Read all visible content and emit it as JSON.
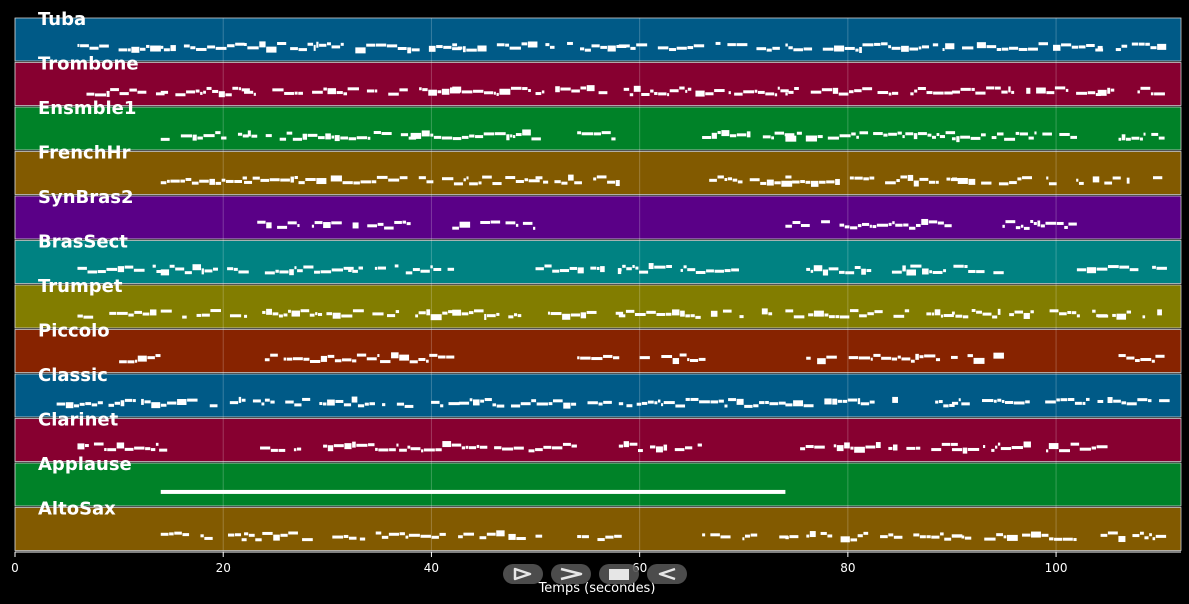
{
  "chart_data": {
    "type": "piano-roll",
    "xlabel": "Temps (secondes)",
    "xlim": [
      0,
      112
    ],
    "xticks": [
      0,
      20,
      40,
      60,
      80,
      100
    ],
    "grid": true,
    "tracks": [
      {
        "name": "Tuba",
        "color": "#005a87",
        "phrases": [
          [
            6,
            14
          ],
          [
            14,
            22
          ],
          [
            22,
            42
          ],
          [
            42,
            58
          ],
          [
            58,
            74
          ],
          [
            74,
            90
          ],
          [
            90,
            104
          ],
          [
            104,
            110
          ]
        ]
      },
      {
        "name": "Trombone",
        "color": "#870030",
        "phrases": [
          [
            6,
            14
          ],
          [
            14,
            22
          ],
          [
            22,
            42
          ],
          [
            42,
            50
          ],
          [
            50,
            58
          ],
          [
            58,
            74
          ],
          [
            74,
            90
          ],
          [
            90,
            104
          ],
          [
            104,
            110
          ]
        ]
      },
      {
        "name": "Ensmble1",
        "color": "#008228",
        "phrases": [
          [
            14,
            22
          ],
          [
            22,
            38
          ],
          [
            38,
            50
          ],
          [
            54,
            58
          ],
          [
            66,
            74
          ],
          [
            74,
            90
          ],
          [
            90,
            102
          ],
          [
            106,
            110
          ]
        ]
      },
      {
        "name": "FrenchHr",
        "color": "#825a00",
        "phrases": [
          [
            14,
            22
          ],
          [
            22,
            40
          ],
          [
            40,
            50
          ],
          [
            50,
            58
          ],
          [
            66,
            74
          ],
          [
            74,
            90
          ],
          [
            90,
            104
          ],
          [
            104,
            110
          ]
        ]
      },
      {
        "name": "SynBras2",
        "color": "#5a0087",
        "phrases": [
          [
            22,
            38
          ],
          [
            42,
            50
          ],
          [
            74,
            90
          ],
          [
            94,
            102
          ]
        ]
      },
      {
        "name": "BrasSect",
        "color": "#008282",
        "phrases": [
          [
            6,
            14
          ],
          [
            14,
            22
          ],
          [
            24,
            32
          ],
          [
            32,
            42
          ],
          [
            50,
            58
          ],
          [
            58,
            70
          ],
          [
            76,
            86
          ],
          [
            86,
            94
          ],
          [
            102,
            110
          ]
        ]
      },
      {
        "name": "Trumpet",
        "color": "#827d00",
        "phrases": [
          [
            6,
            14
          ],
          [
            14,
            22
          ],
          [
            22,
            42
          ],
          [
            42,
            58
          ],
          [
            58,
            74
          ],
          [
            74,
            90
          ],
          [
            90,
            104
          ],
          [
            104,
            110
          ]
        ]
      },
      {
        "name": "Piccolo",
        "color": "#872300",
        "phrases": [
          [
            10,
            14
          ],
          [
            24,
            42
          ],
          [
            54,
            58
          ],
          [
            60,
            66
          ],
          [
            76,
            94
          ],
          [
            106,
            110
          ]
        ]
      },
      {
        "name": "Classic",
        "color": "#005a87",
        "phrases": [
          [
            4,
            22
          ],
          [
            22,
            42
          ],
          [
            42,
            58
          ],
          [
            58,
            74
          ],
          [
            74,
            90
          ],
          [
            90,
            104
          ],
          [
            104,
            110
          ]
        ]
      },
      {
        "name": "Clarinet",
        "color": "#870030",
        "phrases": [
          [
            6,
            14
          ],
          [
            22,
            38
          ],
          [
            38,
            54
          ],
          [
            58,
            66
          ],
          [
            74,
            90
          ],
          [
            90,
            104
          ]
        ]
      },
      {
        "name": "Applause",
        "color": "#008228",
        "phrases": [
          [
            14,
            74
          ]
        ]
      },
      {
        "name": "AltoSax",
        "color": "#825a00",
        "phrases": [
          [
            14,
            22
          ],
          [
            22,
            42
          ],
          [
            42,
            50
          ],
          [
            54,
            58
          ],
          [
            66,
            74
          ],
          [
            74,
            90
          ],
          [
            90,
            102
          ],
          [
            104,
            110
          ]
        ]
      }
    ]
  },
  "controls": {
    "play_icon": "play-icon",
    "next_icon": "next-icon",
    "stop_icon": "stop-icon",
    "back_icon": "back-icon"
  }
}
